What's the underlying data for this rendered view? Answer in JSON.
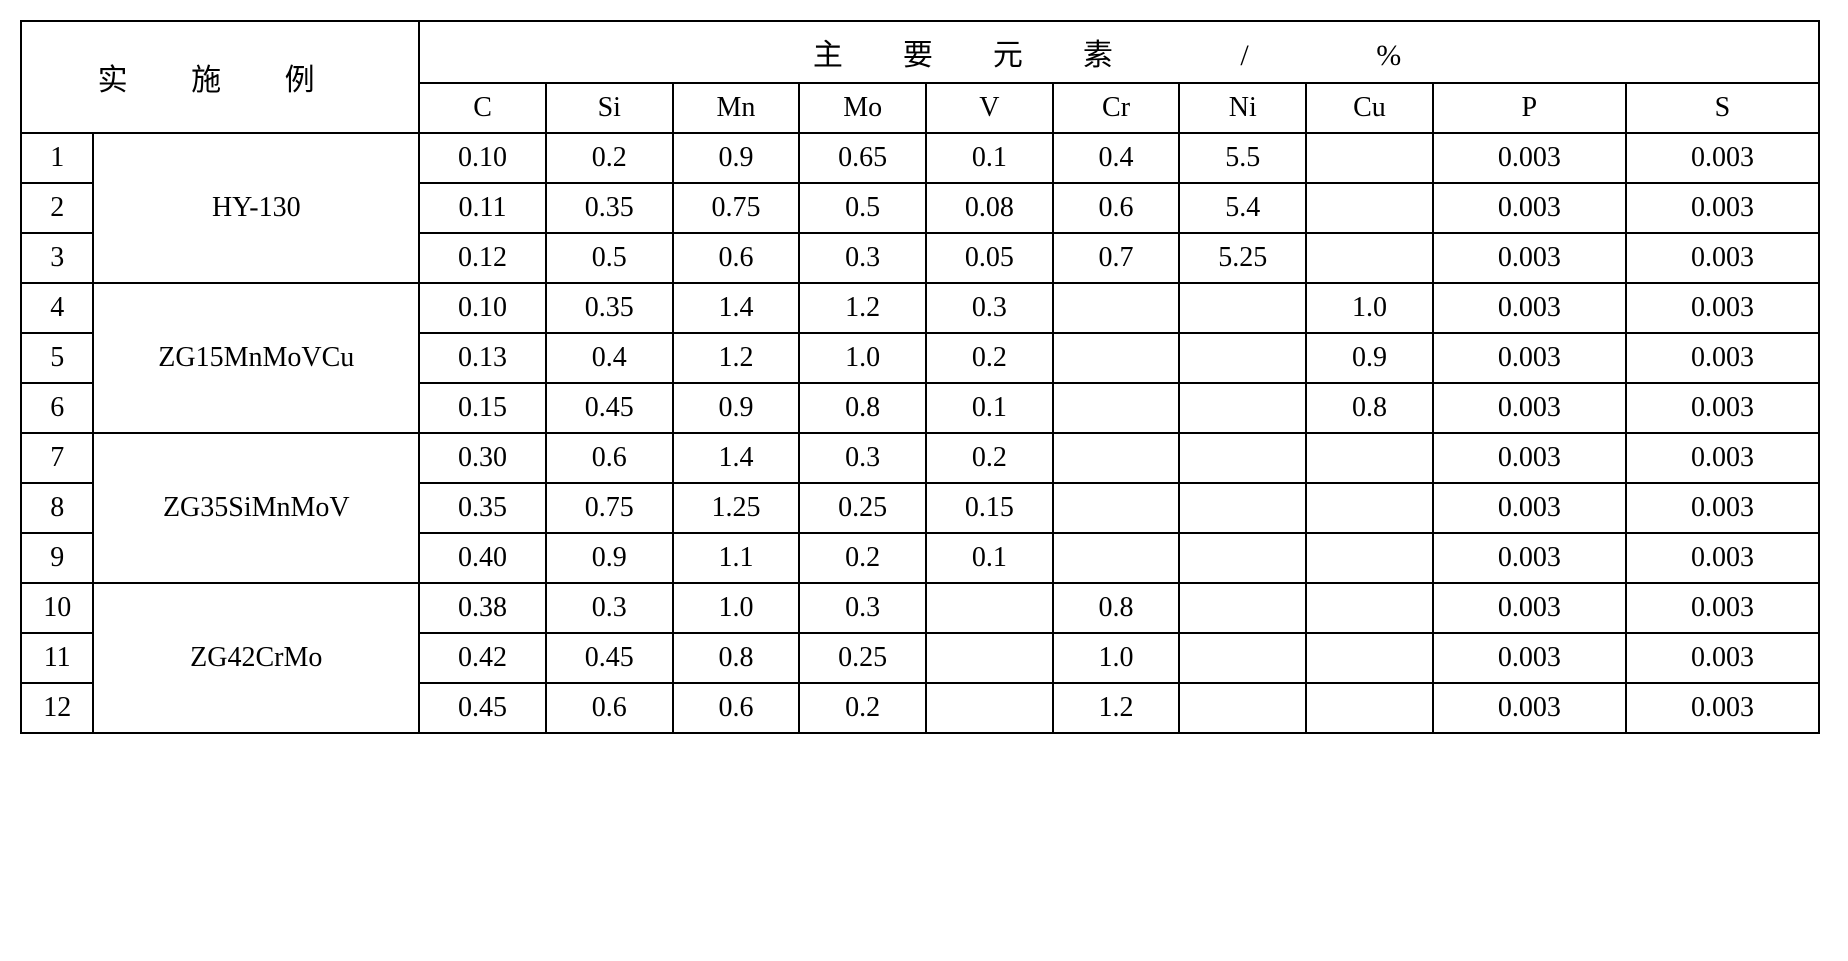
{
  "header": {
    "group_label": "实 施 例",
    "elements_label": "主要元素 / %"
  },
  "columns": [
    "C",
    "Si",
    "Mn",
    "Mo",
    "V",
    "Cr",
    "Ni",
    "Cu",
    "P",
    "S"
  ],
  "groups": [
    {
      "name": "HY-130",
      "rows": [
        {
          "idx": "1",
          "C": "0.10",
          "Si": "0.2",
          "Mn": "0.9",
          "Mo": "0.65",
          "V": "0.1",
          "Cr": "0.4",
          "Ni": "5.5",
          "Cu": "",
          "P": "0.003",
          "S": "0.003"
        },
        {
          "idx": "2",
          "C": "0.11",
          "Si": "0.35",
          "Mn": "0.75",
          "Mo": "0.5",
          "V": "0.08",
          "Cr": "0.6",
          "Ni": "5.4",
          "Cu": "",
          "P": "0.003",
          "S": "0.003"
        },
        {
          "idx": "3",
          "C": "0.12",
          "Si": "0.5",
          "Mn": "0.6",
          "Mo": "0.3",
          "V": "0.05",
          "Cr": "0.7",
          "Ni": "5.25",
          "Cu": "",
          "P": "0.003",
          "S": "0.003"
        }
      ]
    },
    {
      "name": "ZG15MnMoVCu",
      "rows": [
        {
          "idx": "4",
          "C": "0.10",
          "Si": "0.35",
          "Mn": "1.4",
          "Mo": "1.2",
          "V": "0.3",
          "Cr": "",
          "Ni": "",
          "Cu": "1.0",
          "P": "0.003",
          "S": "0.003"
        },
        {
          "idx": "5",
          "C": "0.13",
          "Si": "0.4",
          "Mn": "1.2",
          "Mo": "1.0",
          "V": "0.2",
          "Cr": "",
          "Ni": "",
          "Cu": "0.9",
          "P": "0.003",
          "S": "0.003"
        },
        {
          "idx": "6",
          "C": "0.15",
          "Si": "0.45",
          "Mn": "0.9",
          "Mo": "0.8",
          "V": "0.1",
          "Cr": "",
          "Ni": "",
          "Cu": "0.8",
          "P": "0.003",
          "S": "0.003"
        }
      ]
    },
    {
      "name": "ZG35SiMnMoV",
      "rows": [
        {
          "idx": "7",
          "C": "0.30",
          "Si": "0.6",
          "Mn": "1.4",
          "Mo": "0.3",
          "V": "0.2",
          "Cr": "",
          "Ni": "",
          "Cu": "",
          "P": "0.003",
          "S": "0.003"
        },
        {
          "idx": "8",
          "C": "0.35",
          "Si": "0.75",
          "Mn": "1.25",
          "Mo": "0.25",
          "V": "0.15",
          "Cr": "",
          "Ni": "",
          "Cu": "",
          "P": "0.003",
          "S": "0.003"
        },
        {
          "idx": "9",
          "C": "0.40",
          "Si": "0.9",
          "Mn": "1.1",
          "Mo": "0.2",
          "V": "0.1",
          "Cr": "",
          "Ni": "",
          "Cu": "",
          "P": "0.003",
          "S": "0.003"
        }
      ]
    },
    {
      "name": "ZG42CrMo",
      "rows": [
        {
          "idx": "10",
          "C": "0.38",
          "Si": "0.3",
          "Mn": "1.0",
          "Mo": "0.3",
          "V": "",
          "Cr": "0.8",
          "Ni": "",
          "Cu": "",
          "P": "0.003",
          "S": "0.003"
        },
        {
          "idx": "11",
          "C": "0.42",
          "Si": "0.45",
          "Mn": "0.8",
          "Mo": "0.25",
          "V": "",
          "Cr": "1.0",
          "Ni": "",
          "Cu": "",
          "P": "0.003",
          "S": "0.003"
        },
        {
          "idx": "12",
          "C": "0.45",
          "Si": "0.6",
          "Mn": "0.6",
          "Mo": "0.2",
          "V": "",
          "Cr": "1.2",
          "Ni": "",
          "Cu": "",
          "P": "0.003",
          "S": "0.003"
        }
      ]
    }
  ],
  "style": {
    "border_color": "#000000",
    "background_color": "#ffffff",
    "font_family": "Times New Roman, SimSun, serif",
    "cell_fontsize_pt": 21,
    "header_fontsize_pt": 22
  }
}
